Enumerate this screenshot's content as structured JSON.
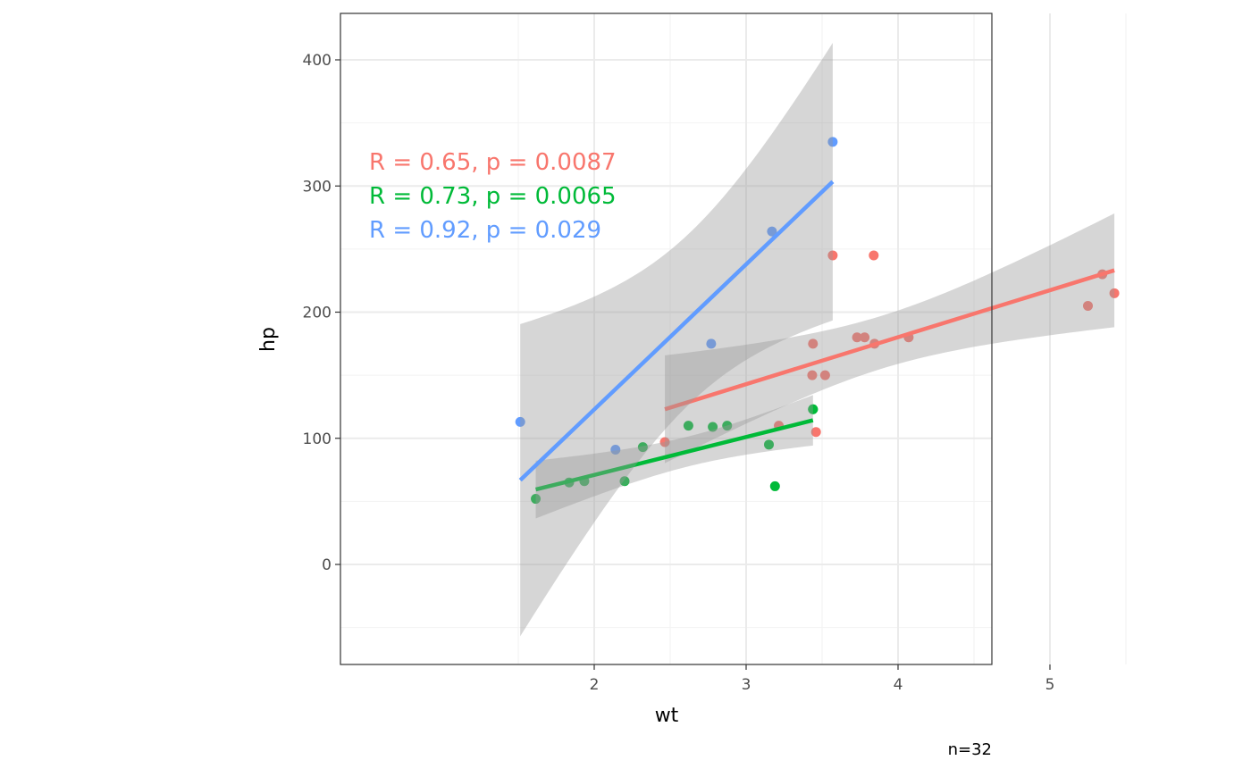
{
  "chart_data": {
    "type": "scatter",
    "xlabel": "wt",
    "ylabel": "hp",
    "xlim": [
      1.32,
      5.61
    ],
    "ylim": [
      -79,
      431
    ],
    "x_ticks": [
      2,
      3,
      4,
      5
    ],
    "y_ticks": [
      0,
      100,
      200,
      300,
      400
    ],
    "grid": true,
    "smooth": "linear regression with 95% confidence band per series",
    "caption": "n=32",
    "series": [
      {
        "color": "#F8766D",
        "annotation": "R = 0.65, p = 0.0087",
        "points": [
          [
            3.215,
            110
          ],
          [
            3.44,
            175
          ],
          [
            3.46,
            105
          ],
          [
            3.57,
            245
          ],
          [
            4.07,
            180
          ],
          [
            3.73,
            180
          ],
          [
            3.78,
            180
          ],
          [
            5.25,
            205
          ],
          [
            5.424,
            215
          ],
          [
            5.345,
            230
          ],
          [
            2.465,
            97
          ],
          [
            3.52,
            150
          ],
          [
            3.435,
            150
          ],
          [
            3.84,
            245
          ],
          [
            3.845,
            175
          ]
        ]
      },
      {
        "color": "#00BA38",
        "annotation": "R = 0.73, p = 0.0065",
        "points": [
          [
            2.62,
            110
          ],
          [
            2.875,
            110
          ],
          [
            2.32,
            93
          ],
          [
            3.19,
            62
          ],
          [
            3.15,
            95
          ],
          [
            3.44,
            123
          ],
          [
            3.44,
            123
          ],
          [
            2.2,
            66
          ],
          [
            1.615,
            52
          ],
          [
            1.835,
            65
          ],
          [
            1.935,
            66
          ],
          [
            2.78,
            109
          ]
        ]
      },
      {
        "color": "#619CFF",
        "annotation": "R = 0.92, p = 0.029",
        "points": [
          [
            2.14,
            91
          ],
          [
            1.513,
            113
          ],
          [
            3.17,
            264
          ],
          [
            2.77,
            175
          ],
          [
            3.57,
            335
          ]
        ]
      }
    ]
  }
}
